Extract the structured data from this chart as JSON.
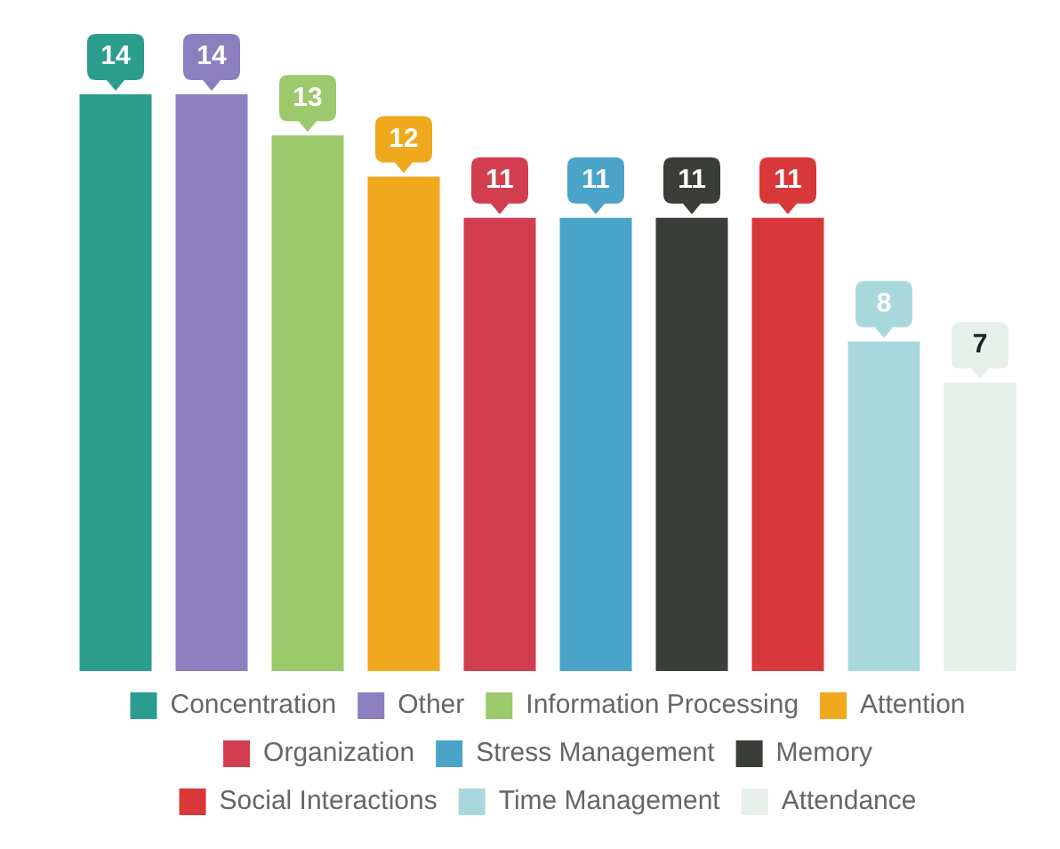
{
  "chart_data": {
    "type": "bar",
    "categories": [
      null,
      null,
      null,
      null,
      null,
      null,
      null,
      null,
      null,
      null
    ],
    "series": [
      {
        "name": "Concentration",
        "color": "#2a9d8f",
        "values": [
          14,
          null,
          null,
          null,
          null,
          null,
          null,
          null,
          null,
          null
        ]
      },
      {
        "name": "Other",
        "color": "#8b7fc0",
        "values": [
          null,
          14,
          null,
          null,
          null,
          null,
          null,
          null,
          null,
          null
        ]
      },
      {
        "name": "Information Processing",
        "color": "#9cc96b",
        "values": [
          null,
          null,
          13,
          null,
          null,
          null,
          null,
          null,
          null,
          null
        ]
      },
      {
        "name": "Attention",
        "color": "#f0a81c",
        "values": [
          null,
          null,
          null,
          12,
          null,
          null,
          null,
          null,
          null,
          null
        ]
      },
      {
        "name": "Organization",
        "color": "#d23d4f",
        "values": [
          null,
          null,
          null,
          null,
          11,
          null,
          null,
          null,
          null,
          null
        ]
      },
      {
        "name": "Stress Management",
        "color": "#4aa3c8",
        "values": [
          null,
          null,
          null,
          null,
          null,
          11,
          null,
          null,
          null,
          null
        ]
      },
      {
        "name": "Memory",
        "color": "#3a3d38",
        "values": [
          null,
          null,
          null,
          null,
          null,
          null,
          11,
          null,
          null,
          null
        ]
      },
      {
        "name": "Social Interactions",
        "color": "#d8383a",
        "values": [
          null,
          null,
          null,
          null,
          null,
          null,
          null,
          11,
          null,
          null
        ]
      },
      {
        "name": "Time Management",
        "color": "#a8d8dc",
        "values": [
          null,
          null,
          null,
          null,
          null,
          null,
          null,
          null,
          8,
          null
        ]
      },
      {
        "name": "Attendance",
        "color": "#e6efe9",
        "values": [
          null,
          null,
          null,
          null,
          null,
          null,
          null,
          null,
          null,
          7
        ]
      }
    ],
    "stacked": true,
    "data_labels": true,
    "legend": "bottom"
  }
}
